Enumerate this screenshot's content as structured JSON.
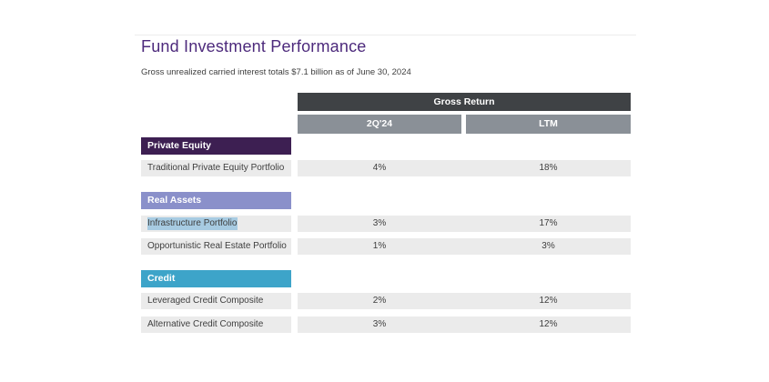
{
  "page": {
    "title": "Fund Investment Performance",
    "subtitle": "Gross unrealized carried interest totals $7.1 billion as of June 30, 2024"
  },
  "table": {
    "group_header": "Gross Return",
    "columns": [
      "2Q'24",
      "LTM"
    ],
    "sections": [
      {
        "name": "Private Equity",
        "header_color": "#3d1f52",
        "rows": [
          {
            "label": "Traditional Private Equity Portfolio",
            "values": [
              "4%",
              "18%"
            ],
            "selected": false
          }
        ]
      },
      {
        "name": "Real Assets",
        "header_color": "#8a90ca",
        "rows": [
          {
            "label": "Infrastructure Portfolio",
            "values": [
              "3%",
              "17%"
            ],
            "selected": true
          },
          {
            "label": "Opportunistic Real Estate Portfolio",
            "values": [
              "1%",
              "3%"
            ],
            "selected": false
          }
        ]
      },
      {
        "name": "Credit",
        "header_color": "#3da4c9",
        "rows": [
          {
            "label": "Leveraged Credit Composite",
            "values": [
              "2%",
              "12%"
            ],
            "selected": false
          },
          {
            "label": "Alternative Credit Composite",
            "values": [
              "3%",
              "12%"
            ],
            "selected": false
          }
        ]
      }
    ]
  },
  "colors": {
    "title_text": "#4d2a7c",
    "group_header_bg": "#3f4245",
    "column_header_bg": "#8a9097",
    "row_bg": "#ebebeb",
    "selection_highlight": "#a7cbe2"
  }
}
